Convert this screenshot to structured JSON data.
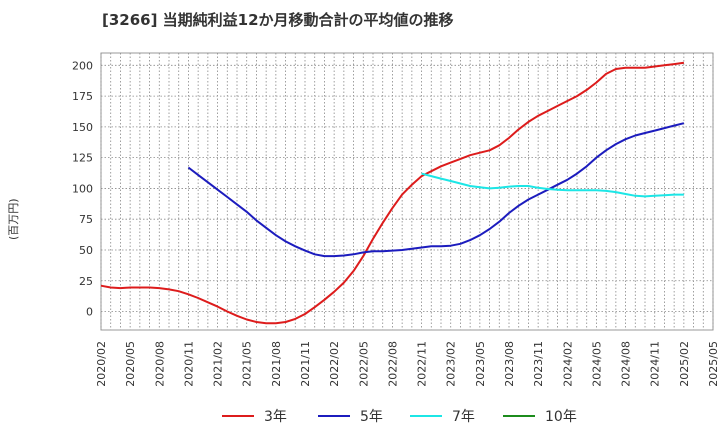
{
  "chart_data": {
    "type": "line",
    "title": "[3266]  当期純利益12か月移動合計の平均値の推移",
    "ylabel": "(百万円)",
    "xlabel": "",
    "ylim": [
      -15,
      210
    ],
    "yticks": [
      0,
      25,
      50,
      75,
      100,
      125,
      150,
      175,
      200
    ],
    "xlim": [
      "2020-02",
      "2025-05"
    ],
    "xticks": [
      "2020/02",
      "2020/05",
      "2020/08",
      "2020/11",
      "2021/02",
      "2021/05",
      "2021/08",
      "2021/11",
      "2022/02",
      "2022/05",
      "2022/08",
      "2022/11",
      "2023/02",
      "2023/05",
      "2023/08",
      "2023/11",
      "2024/02",
      "2024/05",
      "2024/08",
      "2024/11",
      "2025/02",
      "2025/05"
    ],
    "grid": true,
    "legend_position": "bottom",
    "series": [
      {
        "name": "3年",
        "color": "#dd1c1c",
        "x": [
          "2020-02",
          "2020-03",
          "2020-04",
          "2020-05",
          "2020-06",
          "2020-07",
          "2020-08",
          "2020-09",
          "2020-10",
          "2020-11",
          "2020-12",
          "2021-01",
          "2021-02",
          "2021-03",
          "2021-04",
          "2021-05",
          "2021-06",
          "2021-07",
          "2021-08",
          "2021-09",
          "2021-10",
          "2021-11",
          "2021-12",
          "2022-01",
          "2022-02",
          "2022-03",
          "2022-04",
          "2022-05",
          "2022-06",
          "2022-07",
          "2022-08",
          "2022-09",
          "2022-10",
          "2022-11",
          "2022-12",
          "2023-01",
          "2023-02",
          "2023-03",
          "2023-04",
          "2023-05",
          "2023-06",
          "2023-07",
          "2023-08",
          "2023-09",
          "2023-10",
          "2023-11",
          "2023-12",
          "2024-01",
          "2024-02",
          "2024-03",
          "2024-04",
          "2024-05",
          "2024-06",
          "2024-07",
          "2024-08",
          "2024-09",
          "2024-10",
          "2024-11",
          "2024-12",
          "2025-01",
          "2025-02"
        ],
        "values": [
          21,
          19.5,
          19,
          19.5,
          19.5,
          19.5,
          19,
          18,
          16.5,
          14,
          11,
          7.5,
          4,
          0,
          -3.5,
          -6.5,
          -8.5,
          -9.5,
          -9.5,
          -8.5,
          -6,
          -2,
          3.5,
          9.5,
          16,
          23.5,
          33,
          45,
          59,
          72,
          84,
          95,
          103,
          110,
          114,
          118,
          121,
          124,
          127,
          129,
          131,
          135,
          141,
          148,
          154,
          159,
          163,
          167,
          171,
          175,
          180,
          186,
          193,
          197,
          198,
          198,
          198,
          199,
          200,
          201,
          202
        ]
      },
      {
        "name": "5年",
        "color": "#1c1cbe",
        "x": [
          "2020-11",
          "2020-12",
          "2021-01",
          "2021-02",
          "2021-03",
          "2021-04",
          "2021-05",
          "2021-06",
          "2021-07",
          "2021-08",
          "2021-09",
          "2021-10",
          "2021-11",
          "2021-12",
          "2022-01",
          "2022-02",
          "2022-03",
          "2022-04",
          "2022-05",
          "2022-06",
          "2022-07",
          "2022-08",
          "2022-09",
          "2022-10",
          "2022-11",
          "2022-12",
          "2023-01",
          "2023-02",
          "2023-03",
          "2023-04",
          "2023-05",
          "2023-06",
          "2023-07",
          "2023-08",
          "2023-09",
          "2023-10",
          "2023-11",
          "2023-12",
          "2024-01",
          "2024-02",
          "2024-03",
          "2024-04",
          "2024-05",
          "2024-06",
          "2024-07",
          "2024-08",
          "2024-09",
          "2024-10",
          "2024-11",
          "2024-12",
          "2025-01",
          "2025-02"
        ],
        "values": [
          117,
          111,
          105,
          99,
          93,
          87,
          81,
          74,
          68,
          62,
          57,
          53,
          49.5,
          46.5,
          45,
          45,
          45.5,
          46.5,
          48,
          49,
          49,
          49.5,
          50,
          51,
          52,
          53,
          53,
          53.5,
          55,
          58,
          62,
          67,
          73,
          80,
          86,
          91,
          95,
          99,
          103,
          107,
          112,
          118,
          125,
          131,
          136,
          140,
          143,
          145,
          147,
          149,
          151,
          153
        ]
      },
      {
        "name": "7年",
        "color": "#1ce6e6",
        "x": [
          "2022-11",
          "2022-12",
          "2023-01",
          "2023-02",
          "2023-03",
          "2023-04",
          "2023-05",
          "2023-06",
          "2023-07",
          "2023-08",
          "2023-09",
          "2023-10",
          "2023-11",
          "2023-12",
          "2024-01",
          "2024-02",
          "2024-03",
          "2024-04",
          "2024-05",
          "2024-06",
          "2024-07",
          "2024-08",
          "2024-09",
          "2024-10",
          "2024-11",
          "2024-12",
          "2025-01",
          "2025-02"
        ],
        "values": [
          112,
          110,
          108,
          106,
          104,
          102,
          101,
          100,
          100.5,
          101.5,
          102,
          102,
          100.5,
          99.5,
          99,
          98.5,
          98.5,
          98.5,
          98.5,
          98,
          97,
          95.5,
          94,
          93.5,
          94,
          94.5,
          95,
          95
        ]
      },
      {
        "name": "10年",
        "color": "#1c8c1c",
        "x": [],
        "values": []
      }
    ]
  }
}
